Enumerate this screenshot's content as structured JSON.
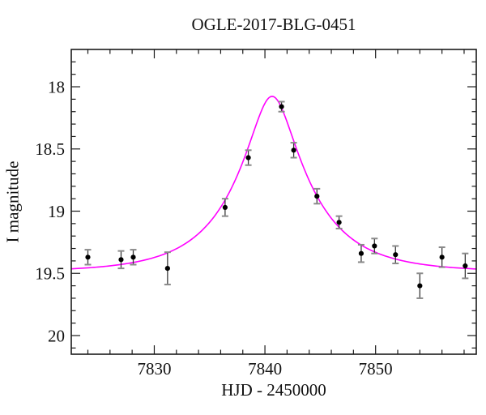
{
  "chart_data": {
    "type": "scatter",
    "title": "OGLE-2017-BLG-0451",
    "xlabel": "HJD - 2450000",
    "ylabel": "I magnitude",
    "x_range": [
      7822.5,
      7859.1
    ],
    "y_range": [
      17.7,
      20.15
    ],
    "y_axis_inverted": true,
    "grid": false,
    "legend": null,
    "x_ticks": {
      "minor_start": 7824,
      "minor_step": 2,
      "minor_end": 7858,
      "major": [
        {
          "v": 7830,
          "label": "7830"
        },
        {
          "v": 7840,
          "label": "7840"
        },
        {
          "v": 7850,
          "label": "7850"
        }
      ]
    },
    "y_ticks": {
      "minor_start": 17.8,
      "minor_step": 0.1,
      "minor_end": 20.1,
      "major": [
        {
          "v": 18.0,
          "label": "18"
        },
        {
          "v": 18.5,
          "label": "18.5"
        },
        {
          "v": 19.0,
          "label": "19"
        },
        {
          "v": 19.5,
          "label": "19.5"
        },
        {
          "v": 20.0,
          "label": "20"
        }
      ]
    },
    "points": [
      {
        "x": 7824.0,
        "mag": 19.37,
        "err": 0.06
      },
      {
        "x": 7827.0,
        "mag": 19.39,
        "err": 0.07
      },
      {
        "x": 7828.1,
        "mag": 19.37,
        "err": 0.06
      },
      {
        "x": 7831.2,
        "mag": 19.46,
        "err": 0.13
      },
      {
        "x": 7836.4,
        "mag": 18.97,
        "err": 0.07
      },
      {
        "x": 7838.5,
        "mag": 18.57,
        "err": 0.06
      },
      {
        "x": 7841.5,
        "mag": 18.16,
        "err": 0.04
      },
      {
        "x": 7842.6,
        "mag": 18.51,
        "err": 0.06
      },
      {
        "x": 7844.7,
        "mag": 18.88,
        "err": 0.06
      },
      {
        "x": 7846.7,
        "mag": 19.09,
        "err": 0.05
      },
      {
        "x": 7848.7,
        "mag": 19.34,
        "err": 0.07
      },
      {
        "x": 7849.9,
        "mag": 19.28,
        "err": 0.06
      },
      {
        "x": 7851.8,
        "mag": 19.35,
        "err": 0.07
      },
      {
        "x": 7854.0,
        "mag": 19.6,
        "err": 0.1
      },
      {
        "x": 7856.0,
        "mag": 19.37,
        "err": 0.08
      },
      {
        "x": 7858.1,
        "mag": 19.44,
        "err": 0.1
      }
    ],
    "model_curve": {
      "name": "paczynski-microlensing-fit",
      "t0": 7840.65,
      "tE": 6.8,
      "u0": 0.28,
      "baseline_mag": 19.49
    },
    "colors": {
      "curve": "#ff00ff",
      "point": "#000000",
      "error_bar": "#3a3a3a",
      "error_cap": "#8a8a8a",
      "axis": "#1a1a1a",
      "text": "#111111",
      "background": "#ffffff"
    }
  }
}
